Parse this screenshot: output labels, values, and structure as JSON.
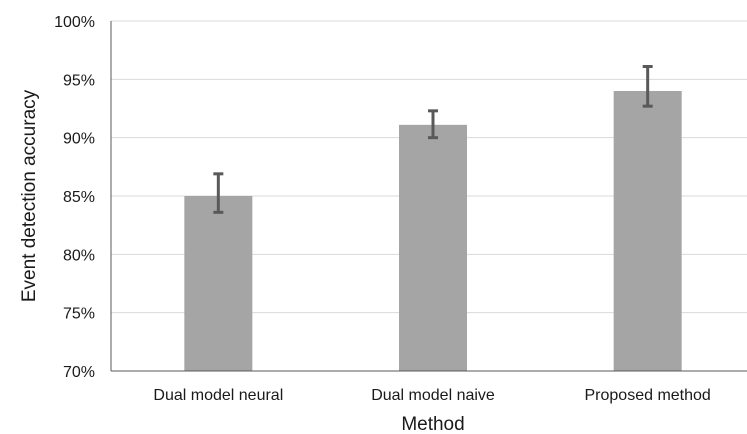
{
  "chart_data": {
    "type": "bar",
    "title": "",
    "xlabel": "Method",
    "ylabel": "Event detection accuracy",
    "categories": [
      "Dual model neural",
      "Dual model naive",
      "Proposed method"
    ],
    "values": [
      85.0,
      91.1,
      94.0
    ],
    "error_low": [
      83.6,
      90.0,
      92.7
    ],
    "error_high": [
      86.9,
      92.3,
      96.1
    ],
    "ylim": [
      70,
      100
    ],
    "yticks": [
      70,
      75,
      80,
      85,
      90,
      95,
      100
    ],
    "ytick_labels": [
      "70%",
      "75%",
      "80%",
      "85%",
      "90%",
      "95%",
      "100%"
    ],
    "grid": true,
    "legend": "none",
    "colors": {
      "bar": "#a5a5a5",
      "error": "#595959",
      "grid": "#d9d9d9",
      "axis": "#595959"
    }
  }
}
